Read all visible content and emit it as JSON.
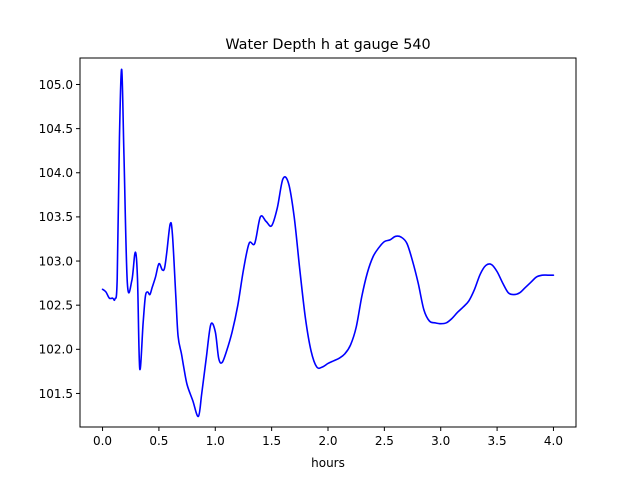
{
  "chart_data": {
    "type": "line",
    "title": "Water Depth h at gauge 540",
    "xlabel": "hours",
    "ylabel": "",
    "xlim": [
      -0.2,
      4.2
    ],
    "ylim": [
      101.12,
      105.3
    ],
    "xticks": [
      0.0,
      0.5,
      1.0,
      1.5,
      2.0,
      2.5,
      3.0,
      3.5,
      4.0
    ],
    "xtick_labels": [
      "0.0",
      "0.5",
      "1.0",
      "1.5",
      "2.0",
      "2.5",
      "3.0",
      "3.5",
      "4.0"
    ],
    "yticks": [
      101.5,
      102.0,
      102.5,
      103.0,
      103.5,
      104.0,
      104.5,
      105.0
    ],
    "ytick_labels": [
      "101.5",
      "102.0",
      "102.5",
      "103.0",
      "103.5",
      "104.0",
      "104.5",
      "105.0"
    ],
    "grid": false,
    "series": [
      {
        "color": "#0000ff",
        "x": [
          0.0,
          0.03,
          0.06,
          0.09,
          0.11,
          0.13,
          0.15,
          0.17,
          0.19,
          0.22,
          0.26,
          0.29,
          0.31,
          0.33,
          0.36,
          0.38,
          0.4,
          0.42,
          0.44,
          0.47,
          0.5,
          0.53,
          0.55,
          0.57,
          0.6,
          0.62,
          0.65,
          0.67,
          0.7,
          0.72,
          0.75,
          0.8,
          0.85,
          0.88,
          0.92,
          0.96,
          1.0,
          1.03,
          1.06,
          1.1,
          1.15,
          1.2,
          1.25,
          1.3,
          1.35,
          1.4,
          1.45,
          1.5,
          1.55,
          1.6,
          1.65,
          1.7,
          1.75,
          1.8,
          1.85,
          1.9,
          1.95,
          2.0,
          2.05,
          2.1,
          2.15,
          2.2,
          2.25,
          2.3,
          2.35,
          2.4,
          2.45,
          2.5,
          2.55,
          2.6,
          2.65,
          2.7,
          2.75,
          2.8,
          2.85,
          2.9,
          2.95,
          3.0,
          3.05,
          3.1,
          3.15,
          3.2,
          3.25,
          3.3,
          3.35,
          3.4,
          3.45,
          3.5,
          3.55,
          3.6,
          3.65,
          3.7,
          3.75,
          3.8,
          3.85,
          3.9,
          3.95,
          4.0
        ],
        "y": [
          102.68,
          102.65,
          102.58,
          102.58,
          102.57,
          102.8,
          104.4,
          105.17,
          104.2,
          102.75,
          102.78,
          103.1,
          102.8,
          101.78,
          102.3,
          102.6,
          102.65,
          102.62,
          102.7,
          102.82,
          102.97,
          102.9,
          102.92,
          103.1,
          103.42,
          103.3,
          102.6,
          102.15,
          101.95,
          101.8,
          101.6,
          101.42,
          101.24,
          101.5,
          101.9,
          102.28,
          102.2,
          101.9,
          101.85,
          101.98,
          102.2,
          102.5,
          102.9,
          103.2,
          103.2,
          103.5,
          103.45,
          103.4,
          103.6,
          103.93,
          103.88,
          103.5,
          102.9,
          102.35,
          101.98,
          101.8,
          101.8,
          101.84,
          101.87,
          101.9,
          101.95,
          102.05,
          102.25,
          102.6,
          102.87,
          103.05,
          103.15,
          103.22,
          103.24,
          103.28,
          103.27,
          103.2,
          103.0,
          102.75,
          102.45,
          102.32,
          102.3,
          102.29,
          102.3,
          102.35,
          102.42,
          102.48,
          102.55,
          102.68,
          102.85,
          102.95,
          102.96,
          102.88,
          102.75,
          102.64,
          102.62,
          102.64,
          102.7,
          102.76,
          102.82,
          102.84,
          102.84,
          102.84
        ]
      }
    ]
  }
}
